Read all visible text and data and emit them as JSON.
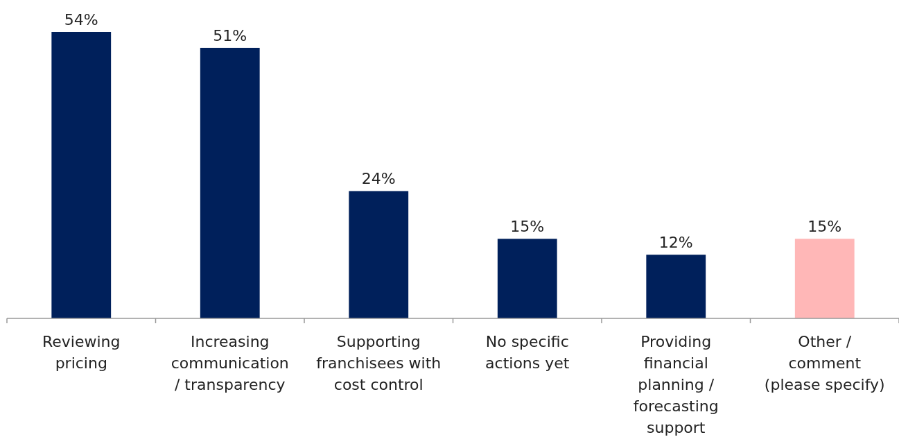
{
  "chart_data": {
    "type": "bar",
    "categories": [
      "Reviewing\npricing",
      "Increasing\ncommunication\n/ transparency",
      "Supporting\nfranchisees with\ncost control",
      "No specific\nactions yet",
      "Providing\nfinancial\nplanning /\nforecasting\nsupport",
      "Other /\ncomment\n(please specify)"
    ],
    "values": [
      54,
      51,
      24,
      15,
      12,
      15
    ],
    "colors": [
      "#00205b",
      "#00205b",
      "#00205b",
      "#00205b",
      "#00205b",
      "#ffb7b7"
    ],
    "value_labels": [
      "54%",
      "51%",
      "24%",
      "15%",
      "12%",
      "15%"
    ]
  }
}
